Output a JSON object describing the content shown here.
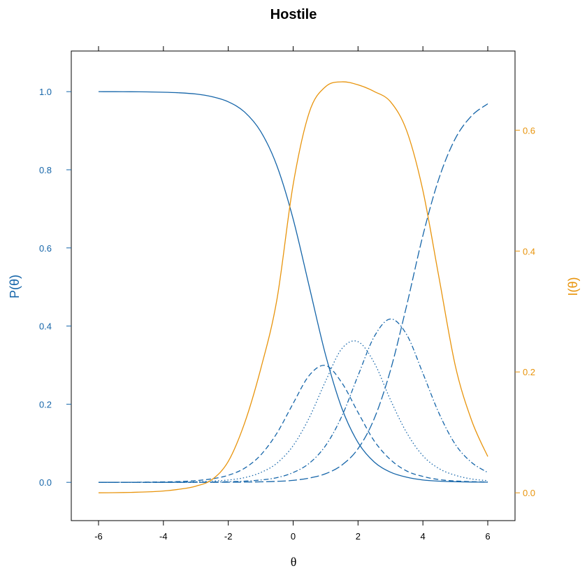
{
  "colors": {
    "probability": "#1565a9",
    "information": "#e8940c",
    "axis": "#000000"
  },
  "chart_data": {
    "type": "line",
    "title": "Hostile",
    "xlabel": "θ",
    "ylabel_left": "P(θ)",
    "ylabel_right": "I(θ)",
    "xlim": [
      -6.84,
      6.84
    ],
    "ylim_left": [
      -0.098,
      1.104
    ],
    "ylim_right": [
      -0.046,
      0.731
    ],
    "grid": false,
    "x_ticks": [
      "-6",
      "-4",
      "-2",
      "0",
      "2",
      "4",
      "6"
    ],
    "y_left_ticks": [
      "0.0",
      "0.2",
      "0.4",
      "0.6",
      "0.8",
      "1.0"
    ],
    "y_right_ticks": [
      "0.0",
      "0.2",
      "0.4",
      "0.6"
    ],
    "x": [
      -6,
      -5.5,
      -5,
      -4.5,
      -4,
      -3.5,
      -3,
      -2.5,
      -2,
      -1.5,
      -1,
      -0.5,
      0,
      0.5,
      1,
      1.5,
      2,
      2.5,
      3,
      3.5,
      4,
      4.5,
      5,
      5.5,
      6
    ],
    "series": [
      {
        "axis": "left",
        "style": "solid",
        "values": [
          1.0,
          0.9999,
          0.9997,
          0.9993,
          0.9985,
          0.997,
          0.994,
          0.987,
          0.974,
          0.948,
          0.898,
          0.81,
          0.674,
          0.5,
          0.326,
          0.19,
          0.102,
          0.052,
          0.026,
          0.013,
          0.006,
          0.003,
          0.0015,
          0.0007,
          0.0003
        ]
      },
      {
        "axis": "left",
        "style": "dashed",
        "values": [
          0,
          0.0001,
          0.0002,
          0.0005,
          0.0011,
          0.002,
          0.0044,
          0.009,
          0.018,
          0.036,
          0.07,
          0.126,
          0.202,
          0.274,
          0.299,
          0.255,
          0.179,
          0.106,
          0.058,
          0.029,
          0.015,
          0.007,
          0.0035,
          0.0017,
          0.0009
        ]
      },
      {
        "axis": "left",
        "style": "dotted",
        "values": [
          0,
          0,
          0.0001,
          0.0001,
          0.0003,
          0.0007,
          0.0014,
          0.003,
          0.006,
          0.012,
          0.025,
          0.049,
          0.094,
          0.166,
          0.259,
          0.342,
          0.36,
          0.306,
          0.211,
          0.127,
          0.068,
          0.035,
          0.018,
          0.0086,
          0.0042
        ]
      },
      {
        "axis": "left",
        "style": "dashdot",
        "values": [
          0,
          0,
          0,
          0,
          0.0001,
          0.0002,
          0.0003,
          0.0007,
          0.0014,
          0.003,
          0.006,
          0.012,
          0.025,
          0.049,
          0.094,
          0.169,
          0.273,
          0.373,
          0.418,
          0.378,
          0.279,
          0.176,
          0.097,
          0.051,
          0.025
        ]
      },
      {
        "axis": "left",
        "style": "longdash",
        "values": [
          0,
          0,
          0,
          0,
          0,
          0,
          0.0001,
          0.0001,
          0.0003,
          0.0006,
          0.0012,
          0.0025,
          0.005,
          0.011,
          0.022,
          0.044,
          0.086,
          0.163,
          0.287,
          0.453,
          0.632,
          0.779,
          0.88,
          0.938,
          0.969
        ]
      },
      {
        "axis": "right",
        "style": "solid",
        "values": [
          0,
          0.0003,
          0.0007,
          0.0015,
          0.003,
          0.006,
          0.011,
          0.022,
          0.052,
          0.115,
          0.205,
          0.32,
          0.51,
          0.63,
          0.672,
          0.68,
          0.675,
          0.664,
          0.647,
          0.599,
          0.5,
          0.355,
          0.21,
          0.12,
          0.06
        ]
      }
    ]
  }
}
